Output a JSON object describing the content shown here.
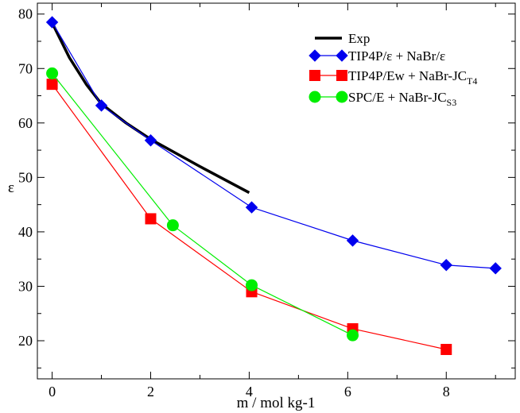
{
  "chart_data": {
    "type": "line",
    "title": "",
    "xlabel": "m / mol kg-1",
    "ylabel": "ε",
    "xlim": [
      -0.3,
      9.4
    ],
    "ylim": [
      13,
      82
    ],
    "xticks": [
      0,
      2,
      4,
      6,
      8
    ],
    "yticks": [
      20,
      30,
      40,
      50,
      60,
      70,
      80
    ],
    "x_minor_step": 1,
    "y_minor_step": 5,
    "grid": false,
    "legend_position": "top-right",
    "series": [
      {
        "name": "Exp",
        "label_main": "Exp",
        "label_sub": "",
        "color": "#000000",
        "marker": "none",
        "line_width": 3.5,
        "x": [
          0,
          0.35,
          0.7,
          1.0,
          1.5,
          2.0,
          3.0,
          4.0
        ],
        "y": [
          78.4,
          72.0,
          67.0,
          63.5,
          60.0,
          57.0,
          52.0,
          47.2
        ]
      },
      {
        "name": "TIP4P/ε + NaBr/ε",
        "label_main": "TIP4P/ε + NaBr/ε",
        "label_sub": "",
        "color": "#0000ee",
        "marker": "diamond",
        "line_width": 1.2,
        "x": [
          0,
          1.0,
          2.0,
          4.05,
          6.1,
          8.0,
          9.0
        ],
        "y": [
          78.5,
          63.2,
          56.8,
          44.5,
          38.4,
          33.9,
          33.3
        ]
      },
      {
        "name": "TIP4P/Ew + NaBr-JCT4",
        "label_main": "TIP4P/Ew + NaBr-JC",
        "label_sub": "T4",
        "color": "#ff0000",
        "marker": "square",
        "line_width": 1.2,
        "x": [
          0,
          2.0,
          4.05,
          6.1,
          8.0
        ],
        "y": [
          67.1,
          42.4,
          29.0,
          22.2,
          18.4
        ]
      },
      {
        "name": "SPC/E + NaBr-JCS3",
        "label_main": "SPC/E + NaBr-JC",
        "label_sub": "S3",
        "color": "#00ee00",
        "marker": "circle",
        "line_width": 1.2,
        "x": [
          0,
          2.45,
          4.05,
          6.1
        ],
        "y": [
          69.1,
          41.2,
          30.2,
          21.0
        ]
      }
    ]
  }
}
